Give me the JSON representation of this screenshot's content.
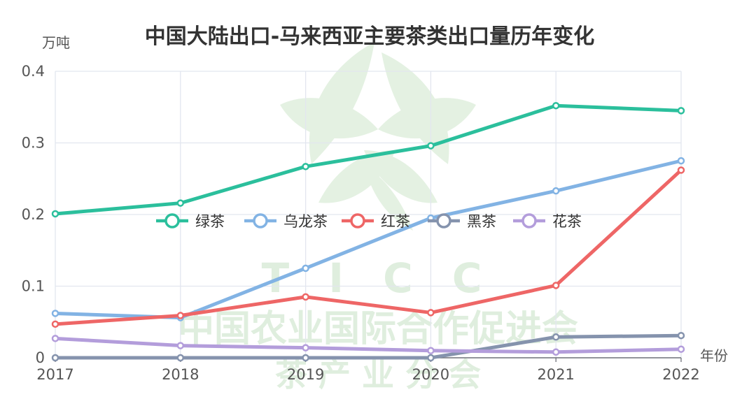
{
  "chart_data": {
    "type": "line",
    "title": "中国大陆出口-马来西亚主要茶类出口量历年变化",
    "ylabel": "万吨",
    "xlabel": "年份",
    "x": [
      "2017",
      "2018",
      "2019",
      "2020",
      "2021",
      "2022"
    ],
    "ylim": [
      0,
      0.4
    ],
    "yticks": [
      0,
      0.1,
      0.2,
      0.3,
      0.4
    ],
    "ytick_labels": [
      "0",
      "0.1",
      "0.2",
      "0.3",
      "0.4"
    ],
    "grid": true,
    "legend_position": "center",
    "series": [
      {
        "name": "绿茶",
        "color": "#2bbf9c",
        "values": [
          0.201,
          0.216,
          0.267,
          0.296,
          0.352,
          0.345
        ]
      },
      {
        "name": "乌龙茶",
        "color": "#82b3e4",
        "values": [
          0.062,
          0.056,
          0.125,
          0.195,
          0.233,
          0.275
        ]
      },
      {
        "name": "红茶",
        "color": "#ee6666",
        "values": [
          0.047,
          0.059,
          0.085,
          0.063,
          0.101,
          0.262
        ]
      },
      {
        "name": "黑茶",
        "color": "#8593ad",
        "values": [
          0.0,
          0.0,
          0.0,
          0.0,
          0.029,
          0.031
        ]
      },
      {
        "name": "花茶",
        "color": "#b39ddb",
        "values": [
          0.027,
          0.017,
          0.014,
          0.01,
          0.008,
          0.012
        ]
      }
    ]
  },
  "watermark": {
    "letters": "T I C C",
    "line1": "中国农业国际合作促进会",
    "line2": "茶  产  业  分  会",
    "color": "#dfeede"
  }
}
